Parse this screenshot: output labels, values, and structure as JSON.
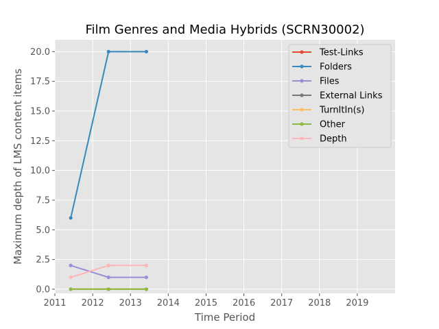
{
  "chart_data": {
    "type": "line",
    "title": "Film Genres and Media Hybrids (SCRN30002)",
    "xlabel": "Time Period",
    "ylabel": "Maximum depth of LMS content items",
    "xlim": [
      2011,
      2020
    ],
    "ylim": [
      -0.35,
      21.0
    ],
    "x_ticks": [
      2011,
      2012,
      2013,
      2014,
      2015,
      2016,
      2017,
      2018,
      2019
    ],
    "y_ticks": [
      0.0,
      2.5,
      5.0,
      7.5,
      10.0,
      12.5,
      15.0,
      17.5,
      20.0
    ],
    "y_tick_labels": [
      "0.0",
      "2.5",
      "5.0",
      "7.5",
      "10.0",
      "12.5",
      "15.0",
      "17.5",
      "20.0"
    ],
    "x_tick_labels": [
      "2011",
      "2012",
      "2013",
      "2014",
      "2015",
      "2016",
      "2017",
      "2018",
      "2019"
    ],
    "x": [
      2011.42,
      2012.42,
      2013.42
    ],
    "grid": true,
    "legend_position": "top-right",
    "series": [
      {
        "name": "Test-Links",
        "color": "#e24a33",
        "values": [
          0,
          0,
          0
        ]
      },
      {
        "name": "Folders",
        "color": "#348abd",
        "values": [
          6,
          20,
          20
        ]
      },
      {
        "name": "Files",
        "color": "#988ed5",
        "values": [
          2,
          1,
          1
        ]
      },
      {
        "name": "External Links",
        "color": "#777777",
        "values": [
          0,
          0,
          0
        ]
      },
      {
        "name": "TurnItIn(s)",
        "color": "#fbc15e",
        "values": [
          0,
          0,
          0
        ]
      },
      {
        "name": "Other",
        "color": "#8eba42",
        "values": [
          0,
          0,
          0
        ]
      },
      {
        "name": "Depth",
        "color": "#ffb5b8",
        "values": [
          1,
          2,
          2
        ]
      }
    ]
  }
}
